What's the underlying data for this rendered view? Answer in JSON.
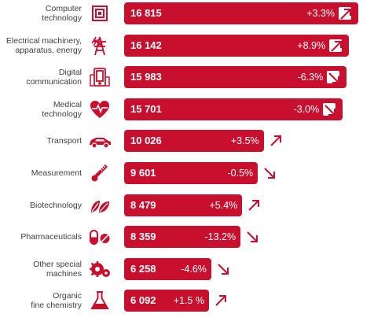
{
  "chart_data": {
    "type": "bar",
    "orientation": "horizontal",
    "categories": [
      [
        "Computer",
        "technology"
      ],
      [
        "Electrical machinery,",
        "apparatus, energy"
      ],
      [
        "Digital",
        "communication"
      ],
      [
        "Medical",
        "technology"
      ],
      [
        "Transport"
      ],
      [
        "Measurement"
      ],
      [
        "Biotechnology"
      ],
      [
        "Pharmaceuticals"
      ],
      [
        "Other special",
        "machines"
      ],
      [
        "Organic",
        "fine chemistry"
      ]
    ],
    "values": [
      16815,
      16142,
      15983,
      15701,
      10026,
      9601,
      8479,
      8359,
      6258,
      6092
    ],
    "value_labels": [
      "16 815",
      "16 142",
      "15 983",
      "15 701",
      "10 026",
      "9 601",
      "8 479",
      "8 359",
      "6 258",
      "6 092"
    ],
    "change_labels": [
      "+3.3%",
      "+8.9%",
      "-6.3%",
      "-3.0%",
      "+3.5%",
      "-0.5%",
      "+5.4%",
      "-13.2%",
      "-4.6%",
      "+1.5 %"
    ],
    "change_direction": [
      "up",
      "up",
      "down",
      "down",
      "up",
      "down",
      "up",
      "down",
      "down",
      "up"
    ],
    "icons": [
      "chip-icon",
      "power-pylon-icon",
      "mobile-devices-icon",
      "heart-pulse-icon",
      "car-icon",
      "thermometer-icon",
      "leaves-icon",
      "pills-icon",
      "gears-icon",
      "flask-icon"
    ],
    "xlim": [
      0,
      16815
    ],
    "bar_color": "#c8102e",
    "icon_color": "#c8102e",
    "arrow_color": "#c8102e"
  }
}
